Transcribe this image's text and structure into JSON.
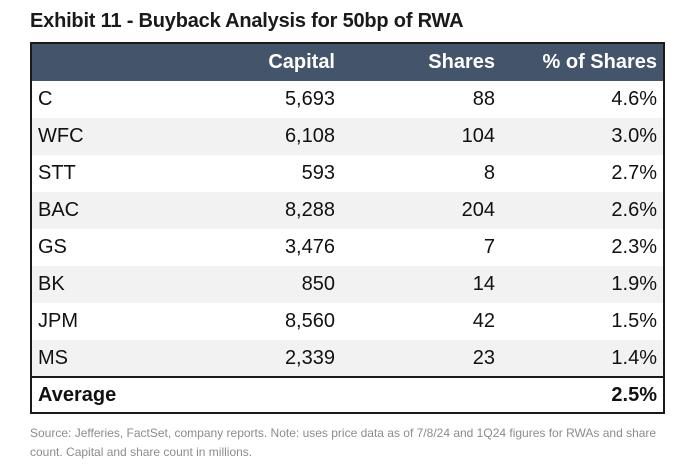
{
  "title": "Exhibit 11 - Buyback Analysis for 50bp of RWA",
  "table": {
    "headers": [
      "",
      "Capital",
      "Shares",
      "% of Shares"
    ],
    "rows": [
      [
        "C",
        "5,693",
        "88",
        "4.6%"
      ],
      [
        "WFC",
        "6,108",
        "104",
        "3.0%"
      ],
      [
        "STT",
        "593",
        "8",
        "2.7%"
      ],
      [
        "BAC",
        "8,288",
        "204",
        "2.6%"
      ],
      [
        "GS",
        "3,476",
        "7",
        "2.3%"
      ],
      [
        "BK",
        "850",
        "14",
        "1.9%"
      ],
      [
        "JPM",
        "8,560",
        "42",
        "1.5%"
      ],
      [
        "MS",
        "2,339",
        "23",
        "1.4%"
      ]
    ],
    "footer": [
      "Average",
      "",
      "",
      "2.5%"
    ]
  },
  "source": "Source: Jefferies, FactSet, company reports. Note: uses price data as of 7/8/24 and 1Q24 figures for RWAs and share count. Capital and share count in millions.",
  "colors": {
    "header_bg": "#44546a",
    "header_text": "#ffffff",
    "stripe": "#f2f2f2",
    "border": "#1a1a1a",
    "source_text": "#8c8c8c"
  }
}
